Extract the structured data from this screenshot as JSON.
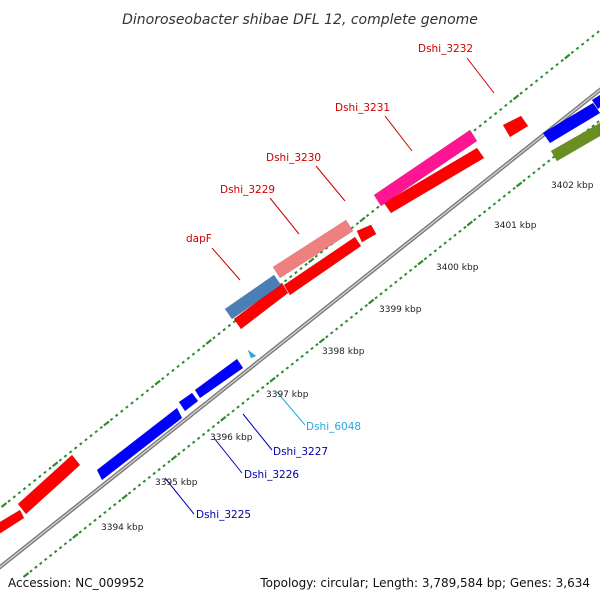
{
  "title": "Dinoroseobacter shibae DFL 12, complete genome",
  "footer": {
    "accession": "Accession: NC_009952",
    "summary": "Topology: circular; Length: 3,789,584 bp; Genes: 3,634"
  },
  "colors": {
    "backbone": "#7a7a7a",
    "tick_dot": "#2e8b2e",
    "label_forward": "#cc0000",
    "label_reverse": "#0000aa",
    "label_rna": "#22aadd"
  },
  "ticks": [
    {
      "label": "3394 kbp"
    },
    {
      "label": "3395 kbp"
    },
    {
      "label": "3396 kbp"
    },
    {
      "label": "3397 kbp"
    },
    {
      "label": "3398 kbp"
    },
    {
      "label": "3399 kbp"
    },
    {
      "label": "3400 kbp"
    },
    {
      "label": "3401 kbp"
    },
    {
      "label": "3402 kbp"
    }
  ],
  "genes": [
    {
      "id": "gene-fwd-left",
      "color": "#ff0000",
      "label": ""
    },
    {
      "id": "gene-fwd-left2",
      "color": "#ff0000",
      "label": ""
    },
    {
      "id": "gene-dshi-3225",
      "color": "#0000ff",
      "label": "Dshi_3225"
    },
    {
      "id": "gene-dshi-3226",
      "color": "#0000ff",
      "label": "Dshi_3226"
    },
    {
      "id": "gene-dshi-3227",
      "color": "#0000ff",
      "label": "Dshi_3227"
    },
    {
      "id": "gene-dshi-6048",
      "color": "#22aadd",
      "label": "Dshi_6048"
    },
    {
      "id": "gene-red-1",
      "color": "#ff0000",
      "label": ""
    },
    {
      "id": "gene-red-2",
      "color": "#ff0000",
      "label": ""
    },
    {
      "id": "gene-red-3",
      "color": "#ff0000",
      "label": ""
    },
    {
      "id": "gene-red-4",
      "color": "#ff0000",
      "label": ""
    },
    {
      "id": "gene-dapf",
      "color": "#4a7fb5",
      "label": "dapF"
    },
    {
      "id": "gene-dshi-3229",
      "color": "#f08080",
      "label": "Dshi_3229"
    },
    {
      "id": "gene-dshi-3230",
      "color": "#ff0000",
      "label": "Dshi_3230"
    },
    {
      "id": "gene-dshi-3231",
      "color": "#ff1493",
      "label": "Dshi_3231"
    },
    {
      "id": "gene-dshi-3232",
      "color": "#ff0000",
      "label": "Dshi_3232"
    },
    {
      "id": "gene-blue-right",
      "color": "#0000ff",
      "label": ""
    },
    {
      "id": "gene-green-right",
      "color": "#6b8e23",
      "label": ""
    },
    {
      "id": "gene-blue-right2",
      "color": "#0000ff",
      "label": ""
    }
  ]
}
